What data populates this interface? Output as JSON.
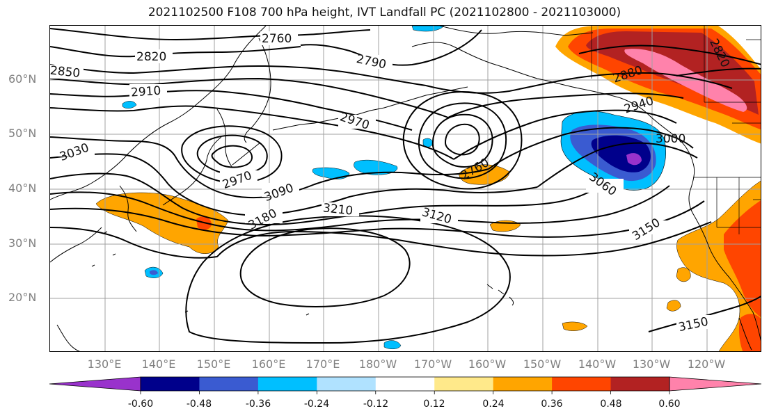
{
  "title": "2021102500 F108 700 hPa height, IVT Landfall PC (2021102800 - 2021103000)",
  "latitude_labels": [
    "60°N",
    "50°N",
    "40°N",
    "30°N",
    "20°N"
  ],
  "longitude_labels": [
    "130°E",
    "140°E",
    "150°E",
    "160°E",
    "170°E",
    "180°W",
    "170°W",
    "160°W",
    "150°W",
    "140°W",
    "130°W",
    "120°W"
  ],
  "contour_labels": {
    "c2760": "2760",
    "c2820": "2820",
    "c2790": "2790",
    "c2850": "2850",
    "c2910": "2910",
    "c2970_mid": "2970",
    "c3030": "3030",
    "c2970_low": "2970",
    "c3090": "3090",
    "c3180": "3180",
    "c3210": "3210",
    "c3120": "3120",
    "c2760_low": "2760",
    "c3060": "3060",
    "c3150_right": "3150",
    "c3150_bottom": "3150",
    "c2880": "2880",
    "c3000": "3000",
    "c2940": "2940",
    "c2820_top": "2820"
  },
  "colorbar": {
    "colors": [
      "#9932cc",
      "#00008b",
      "#3a5bd1",
      "#00bfff",
      "#b0e2ff",
      "#ffffff",
      "#ffe98a",
      "#ffa500",
      "#ff4500",
      "#b22222",
      "#ff82ab"
    ],
    "tick_labels": [
      "-0.60",
      "-0.48",
      "-0.36",
      "-0.24",
      "-0.12",
      "0.12",
      "0.24",
      "0.36",
      "0.48",
      "0.60"
    ]
  }
}
